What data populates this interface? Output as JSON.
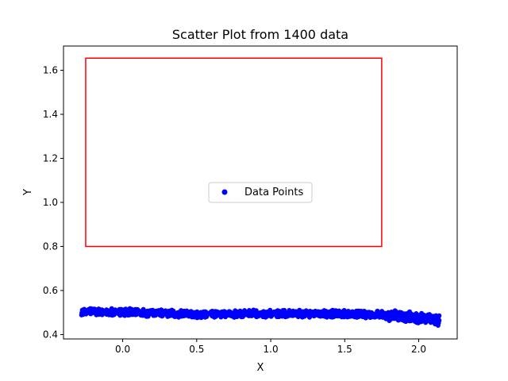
{
  "chart_data": {
    "type": "scatter",
    "title": "Scatter Plot from 1400 data",
    "xlabel": "X",
    "ylabel": "Y",
    "xlim": [
      -0.4,
      2.26
    ],
    "ylim": [
      0.38,
      1.71
    ],
    "xticks": [
      0.0,
      0.5,
      1.0,
      1.5,
      2.0
    ],
    "xtick_labels": [
      "0.0",
      "0.5",
      "1.0",
      "1.5",
      "2.0"
    ],
    "yticks": [
      0.4,
      0.6,
      0.8,
      1.0,
      1.2,
      1.4,
      1.6
    ],
    "ytick_labels": [
      "0.4",
      "0.6",
      "0.8",
      "1.0",
      "1.2",
      "1.4",
      "1.6"
    ],
    "grid": false,
    "legend": {
      "position": "center",
      "entries": [
        "Data Points"
      ]
    },
    "series": [
      {
        "name": "Data Points",
        "color": "#0000ff",
        "point_count": 1400,
        "x_range": [
          -0.28,
          2.14
        ],
        "trend": [
          {
            "x": -0.28,
            "y": 0.505
          },
          {
            "x": 0.0,
            "y": 0.502
          },
          {
            "x": 0.5,
            "y": 0.492
          },
          {
            "x": 1.0,
            "y": 0.495
          },
          {
            "x": 1.5,
            "y": 0.494
          },
          {
            "x": 1.75,
            "y": 0.49
          },
          {
            "x": 2.0,
            "y": 0.475
          },
          {
            "x": 2.14,
            "y": 0.465
          }
        ],
        "spread": 0.018
      }
    ],
    "annotations": [
      {
        "type": "rectangle",
        "color": "#ff0000",
        "x0": -0.25,
        "x1": 1.75,
        "y0": 0.8,
        "y1": 1.655
      }
    ]
  }
}
